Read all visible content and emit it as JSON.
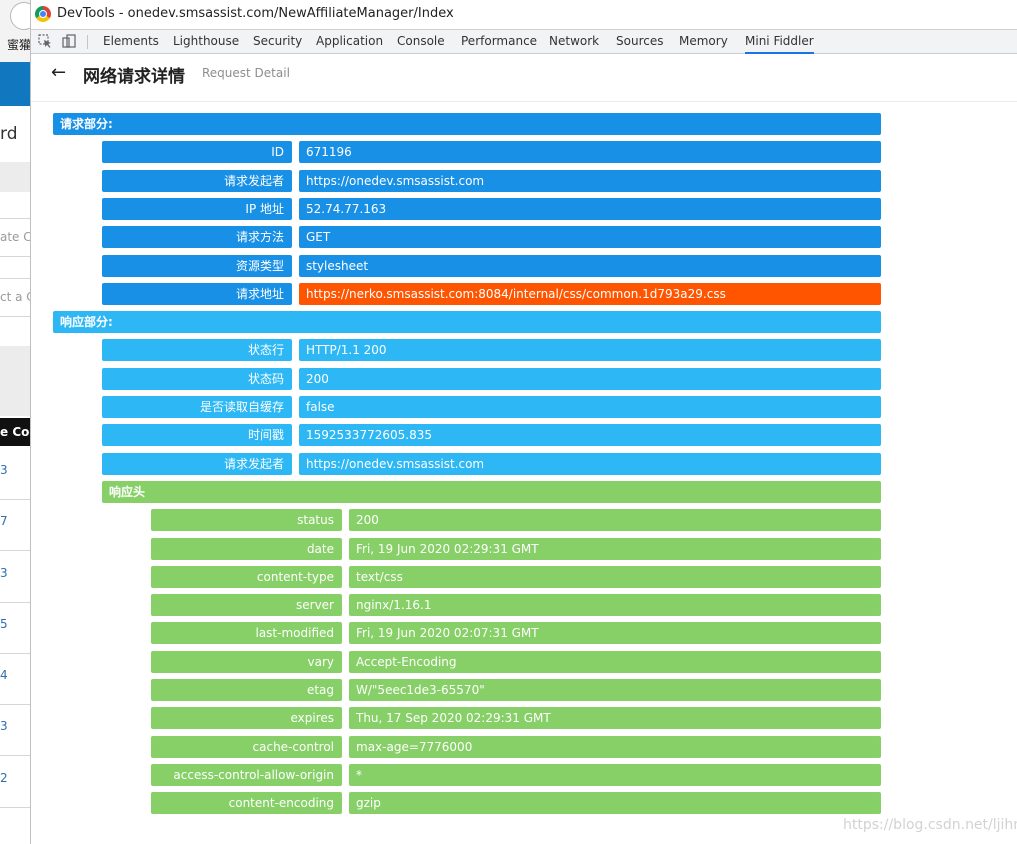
{
  "background_page": {
    "partial_text": "蜜獾",
    "heading_fragment": "rd",
    "placeholder_1": "ate Co",
    "placeholder_2": "ct a C",
    "table_header": "e Cod",
    "row_numbers": [
      "3",
      "7",
      "3",
      "5",
      "4",
      "3",
      "2"
    ]
  },
  "window": {
    "title": "DevTools - onedev.smsassist.com/NewAffiliateManager/Index"
  },
  "devtools_tabs": [
    "Elements",
    "Lighthouse",
    "Security",
    "Application",
    "Console",
    "Performance",
    "Network",
    "Sources",
    "Memory",
    "Mini Fiddler"
  ],
  "active_tab": "Mini Fiddler",
  "header": {
    "back_icon": "←",
    "title": "网络请求详情",
    "subtitle": "Request Detail"
  },
  "colors": {
    "request": "#1890e6",
    "response": "#2db7f5",
    "headers": "#87d068",
    "highlight": "#ff5500"
  },
  "request_section": {
    "title": "请求部分:",
    "rows": [
      {
        "label": "ID",
        "value": "671196"
      },
      {
        "label": "请求发起者",
        "value": "https://onedev.smsassist.com"
      },
      {
        "label": "IP 地址",
        "value": "52.74.77.163"
      },
      {
        "label": "请求方法",
        "value": "GET"
      },
      {
        "label": "资源类型",
        "value": "stylesheet"
      },
      {
        "label": "请求地址",
        "value": "https://nerko.smsassist.com:8084/internal/css/common.1d793a29.css",
        "highlight": true
      }
    ]
  },
  "response_section": {
    "title": "响应部分:",
    "rows": [
      {
        "label": "状态行",
        "value": "HTTP/1.1 200"
      },
      {
        "label": "状态码",
        "value": "200"
      },
      {
        "label": "是否读取自缓存",
        "value": "false"
      },
      {
        "label": "时间戳",
        "value": "1592533772605.835"
      },
      {
        "label": "请求发起者",
        "value": "https://onedev.smsassist.com"
      }
    ]
  },
  "response_headers": {
    "title": "响应头",
    "rows": [
      {
        "label": "status",
        "value": "200"
      },
      {
        "label": "date",
        "value": "Fri, 19 Jun 2020 02:29:31 GMT"
      },
      {
        "label": "content-type",
        "value": "text/css"
      },
      {
        "label": "server",
        "value": "nginx/1.16.1"
      },
      {
        "label": "last-modified",
        "value": "Fri, 19 Jun 2020 02:07:31 GMT"
      },
      {
        "label": "vary",
        "value": "Accept-Encoding"
      },
      {
        "label": "etag",
        "value": "W/\"5eec1de3-65570\""
      },
      {
        "label": "expires",
        "value": "Thu, 17 Sep 2020 02:29:31 GMT"
      },
      {
        "label": "cache-control",
        "value": "max-age=7776000"
      },
      {
        "label": "access-control-allow-origin",
        "value": "*"
      },
      {
        "label": "content-encoding",
        "value": "gzip"
      }
    ]
  },
  "watermark": "https://blog.csdn.net/ljihnick"
}
